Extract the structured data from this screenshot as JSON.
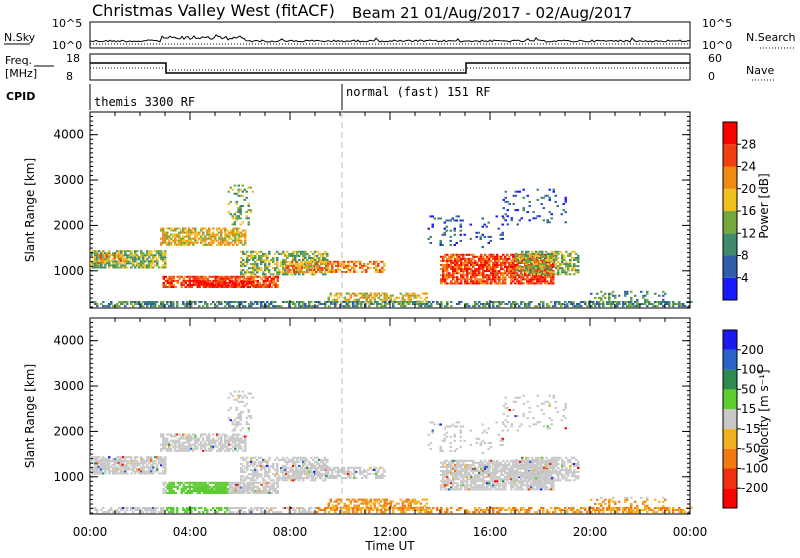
{
  "header": {
    "site": "Christmas Valley West (fitACF)",
    "beam_info": "Beam 21 01/Aug/2017 - 02/Aug/2017"
  },
  "panels": {
    "nsky_label": "N.Sky",
    "nsearch_label": "N.Search",
    "freq_label_1": "Freq.",
    "freq_label_2": "[MHz]",
    "nave_label": "Nave",
    "cpid_label": "CPID",
    "nsky_ticks": [
      "10^5",
      "10^0"
    ],
    "nsearch_ticks": [
      "10^5",
      "10^0"
    ],
    "freq_ticks": [
      "18",
      "8"
    ],
    "nave_ticks": [
      "60",
      "0"
    ],
    "cpid_left": "themis 3300 RF",
    "cpid_right": "normal (fast) 151 RF"
  },
  "chart_data": [
    {
      "type": "heatmap",
      "name": "power",
      "xlabel": "Time UT",
      "ylabel": "Slant Range [km]",
      "x_ticks": [
        "00:00",
        "04:00",
        "08:00",
        "12:00",
        "16:00",
        "20:00",
        "00:00"
      ],
      "y_ticks": [
        "1000",
        "2000",
        "3000",
        "4000"
      ],
      "ylim": [
        180,
        4500
      ],
      "colorbar_label": "Power [dB]",
      "colorbar_ticks": [
        "4",
        "8",
        "12",
        "16",
        "20",
        "24",
        "28"
      ],
      "colorbar_range": [
        0,
        30
      ],
      "colors": [
        "#1a1aff",
        "#2e5ea8",
        "#3f8a6a",
        "#74a83d",
        "#f0c020",
        "#f08a10",
        "#f04010",
        "#ff0000"
      ]
    },
    {
      "type": "heatmap",
      "name": "velocity",
      "xlabel": "Time UT",
      "ylabel": "Slant Range [km]",
      "x_ticks": [
        "00:00",
        "04:00",
        "08:00",
        "12:00",
        "16:00",
        "20:00",
        "00:00"
      ],
      "y_ticks": [
        "1000",
        "2000",
        "3000",
        "4000"
      ],
      "ylim": [
        180,
        4500
      ],
      "colorbar_label": "Velocity [m s⁻¹]",
      "colorbar_ticks": [
        "200",
        "100",
        "50",
        "15",
        "-15",
        "-50",
        "-100",
        "-200"
      ],
      "colors": [
        "#1a1aee",
        "#2a64c8",
        "#2e8a50",
        "#5ccc30",
        "#c8c8c8",
        "#f0b020",
        "#f07a10",
        "#f03010",
        "#ff0000"
      ]
    }
  ],
  "x_axis_title": "Time UT"
}
